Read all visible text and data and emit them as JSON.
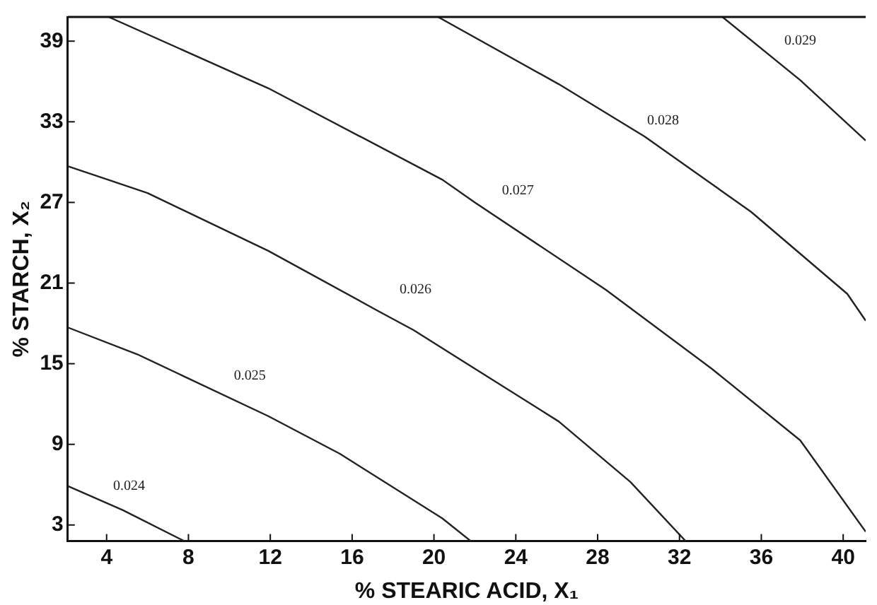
{
  "chart_data": {
    "type": "line",
    "xlabel": "% STEARIC ACID, X₁",
    "ylabel": "% STARCH, X₂",
    "xlim": [
      2.1,
      41.1
    ],
    "ylim": [
      1.8,
      40.8
    ],
    "xticks": [
      4,
      8,
      12,
      16,
      20,
      24,
      28,
      32,
      36,
      40
    ],
    "yticks": [
      3,
      9,
      15,
      21,
      27,
      33,
      39
    ],
    "grid": false,
    "legend": false,
    "marker": "none",
    "line_style": "solid",
    "series": [
      {
        "color": "#222222",
        "x": [
          2.1,
          4.8,
          7.8
        ],
        "values": [
          5.9,
          4.1,
          1.8
        ]
      },
      {
        "color": "#222222",
        "x": [
          2.1,
          5.5,
          11.9,
          15.4,
          20.4,
          21.8
        ],
        "values": [
          17.7,
          15.7,
          11.1,
          8.3,
          3.5,
          1.8
        ]
      },
      {
        "color": "#222222",
        "x": [
          2.1,
          6.0,
          11.9,
          17.3,
          19.0,
          26.1,
          29.6,
          32.3
        ],
        "values": [
          29.7,
          27.7,
          23.4,
          18.9,
          17.5,
          10.7,
          6.2,
          1.8
        ]
      },
      {
        "color": "#222222",
        "x": [
          4.1,
          11.9,
          20.4,
          22.0,
          28.4,
          33.6,
          37.9,
          41.1
        ],
        "values": [
          40.8,
          35.5,
          28.7,
          27.0,
          20.5,
          14.6,
          9.3,
          2.5
        ]
      },
      {
        "color": "#222222",
        "x": [
          20.2,
          26.1,
          30.3,
          35.5,
          40.2,
          41.1
        ],
        "values": [
          40.8,
          35.8,
          31.9,
          26.3,
          20.2,
          18.2
        ]
      },
      {
        "color": "#222222",
        "x": [
          34.1,
          37.9,
          41.1
        ],
        "values": [
          40.8,
          36.1,
          31.6
        ]
      }
    ],
    "annotations": [
      {
        "text": "0.024",
        "x": 5.1,
        "y": 5.9
      },
      {
        "text": "0.025",
        "x": 11.0,
        "y": 14.1
      },
      {
        "text": "0.026",
        "x": 19.1,
        "y": 20.5
      },
      {
        "text": "0.027",
        "x": 24.1,
        "y": 27.9
      },
      {
        "text": "0.028",
        "x": 31.2,
        "y": 33.1
      },
      {
        "text": "0.029",
        "x": 37.9,
        "y": 39.0
      }
    ]
  }
}
